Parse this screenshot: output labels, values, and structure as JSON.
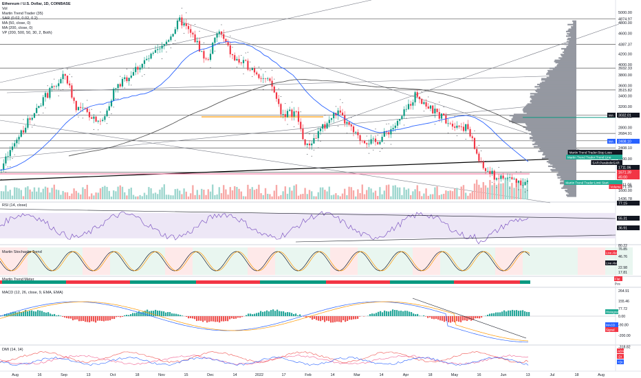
{
  "header": {
    "symbol": "Ethereum / U.S. Dollar, 1D, COINBASE",
    "lines": [
      "Vol",
      "Martin Trend Trader (35)",
      "SAR (0.02, 0.02, 0.2)",
      "MA (50, close, 0)",
      "MA (200, close, 0)",
      "VP (200, 500, 50, 30, 2, Both)"
    ]
  },
  "panes": {
    "rsi": "RSI (14, close)",
    "stoch": "Martin Stochastic Trend",
    "trend": "Martin Trend Meter",
    "macd": "MACD (12, 26, close, 9, EMA, EMA)",
    "dmi": "DMI (14, 14)"
  },
  "colors": {
    "up": "#26a69a",
    "down": "#ef5350",
    "upBody": "#089981",
    "downBody": "#f23645",
    "axis": "#131722",
    "hline": "#555555",
    "ma50": "#2962ff",
    "ma200": "#555555",
    "orange": "#ff9800",
    "vp": "#9598a1",
    "badgeTeal": "#22ab94",
    "badgeRed": "#f23645",
    "badgeBlue": "#2962ff",
    "badgeDark": "#131722",
    "badgeGray": "#787b86"
  },
  "chart_data": [
    {
      "type": "candlestick",
      "title": "Ethereum / U.S. Dollar, 1D, COINBASE",
      "x_ticks": [
        "Aug",
        "16",
        "Sep",
        "13",
        "Oct",
        "18",
        "Nov",
        "15",
        "Dec",
        "14",
        "2022",
        "17",
        "Feb",
        "14",
        "Mar",
        "14",
        "Apr",
        "18",
        "May",
        "16",
        "Jun",
        "13",
        "Jul",
        "18",
        "Aug"
      ],
      "y_ticks": [
        "5000.00",
        "4874.97",
        "4800.00",
        "4600.00",
        "4387.37",
        "4200.00",
        "4000.00",
        "3932.33",
        "3800.00",
        "3600.00",
        "3515.82",
        "3400.00",
        "3200.00",
        "3032.01",
        "3000.00",
        "2800.00",
        "2684.91",
        "2544.41",
        "2408.10",
        "2200.00",
        "1941.11",
        "1711.06",
        "1671.39",
        "1600.00",
        "1436.78"
      ],
      "horizontal_levels": [
        4874.97,
        4387.37,
        3932.33,
        3515.82,
        3032.01,
        2684.91,
        2544.41,
        2408.1,
        1941.11
      ],
      "price_badges": [
        {
          "label": "MA",
          "value": "3032.01"
        },
        {
          "label": "MA",
          "value": "2408.10"
        },
        {
          "label": "Martin Trend Trader:Stop Loss",
          "value": ""
        },
        {
          "label": "Martin Trend Trader:Trend Line",
          "value": ""
        },
        {
          "label": "SAR:ParabolicSAR",
          "value": ""
        },
        {
          "label": "",
          "value": "1711.06"
        },
        {
          "label": "",
          "value": "1671.39"
        },
        {
          "label": "",
          "value": "45:00"
        },
        {
          "label": "Martin Trend Trader:Limit Start",
          "value": ""
        },
        {
          "label": "Volume",
          "value": ""
        }
      ],
      "y_range": [
        1400,
        5050
      ]
    },
    {
      "type": "line",
      "title": "RSI (14, close)",
      "y_ticks": [
        "77.15",
        "55.31",
        "36.91"
      ]
    },
    {
      "type": "line",
      "title": "Martin Stochastic Trend",
      "y_ticks": [
        "80.22",
        "76.85",
        "46.76",
        "22.98",
        "17.81"
      ],
      "badges": [
        "Live Alert",
        "Live Alert"
      ]
    },
    {
      "type": "bar",
      "title": "Martin Trend Meter",
      "badges": [
        "Flat",
        "Pos"
      ]
    },
    {
      "type": "bar",
      "title": "MACD (12, 26, close, 9, EMA, EMA)",
      "y_ticks": [
        "264.91",
        "155.46",
        "77.72",
        "0.00",
        "-90.80",
        "-200.00",
        "-318.82"
      ],
      "badges": [
        "Histogram",
        "MACD",
        "Signal"
      ]
    },
    {
      "type": "line",
      "title": "DMI (14, 14)",
      "badges": [
        "ADX",
        "-DI",
        "+DI"
      ]
    }
  ]
}
